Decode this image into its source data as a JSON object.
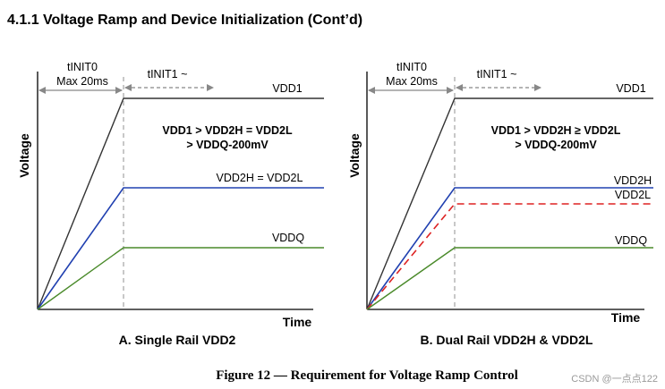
{
  "section_title": "4.1.1  Voltage Ramp and Device Initialization (Cont’d)",
  "figure_caption": "Figure 12 — Requirement for Voltage Ramp Control",
  "watermark": "CSDN @一点点122",
  "colors": {
    "vdd1": "#333333",
    "vdd2h": "#2040b0",
    "vdd2l": "#dd2222",
    "vddq": "#4a8a2a",
    "arrow": "#888888"
  },
  "panel_a": {
    "y_axis_label": "Voltage",
    "x_axis_label": "Time",
    "tinit0_label": "tINIT0",
    "tinit0_max": "Max 20ms",
    "tinit1_label": "tINIT1 ~",
    "condition_line1": "VDD1 > VDD2H = VDD2L",
    "condition_line2": "> VDDQ-200mV",
    "vdd1_label": "VDD1",
    "vdd2_label": "VDD2H = VDD2L",
    "vddq_label": "VDDQ",
    "subtitle": "A. Single Rail VDD2"
  },
  "panel_b": {
    "y_axis_label": "Voltage",
    "x_axis_label": "Time",
    "tinit0_label": "tINIT0",
    "tinit0_max": "Max 20ms",
    "tinit1_label": "tINIT1 ~",
    "condition_line1": "VDD1 > VDD2H ≥ VDD2L",
    "condition_line2": "> VDDQ-200mV",
    "vdd1_label": "VDD1",
    "vdd2h_label": "VDD2H",
    "vdd2l_label": "VDD2L",
    "vddq_label": "VDDQ",
    "subtitle": "B. Dual Rail VDD2H & VDD2L"
  }
}
